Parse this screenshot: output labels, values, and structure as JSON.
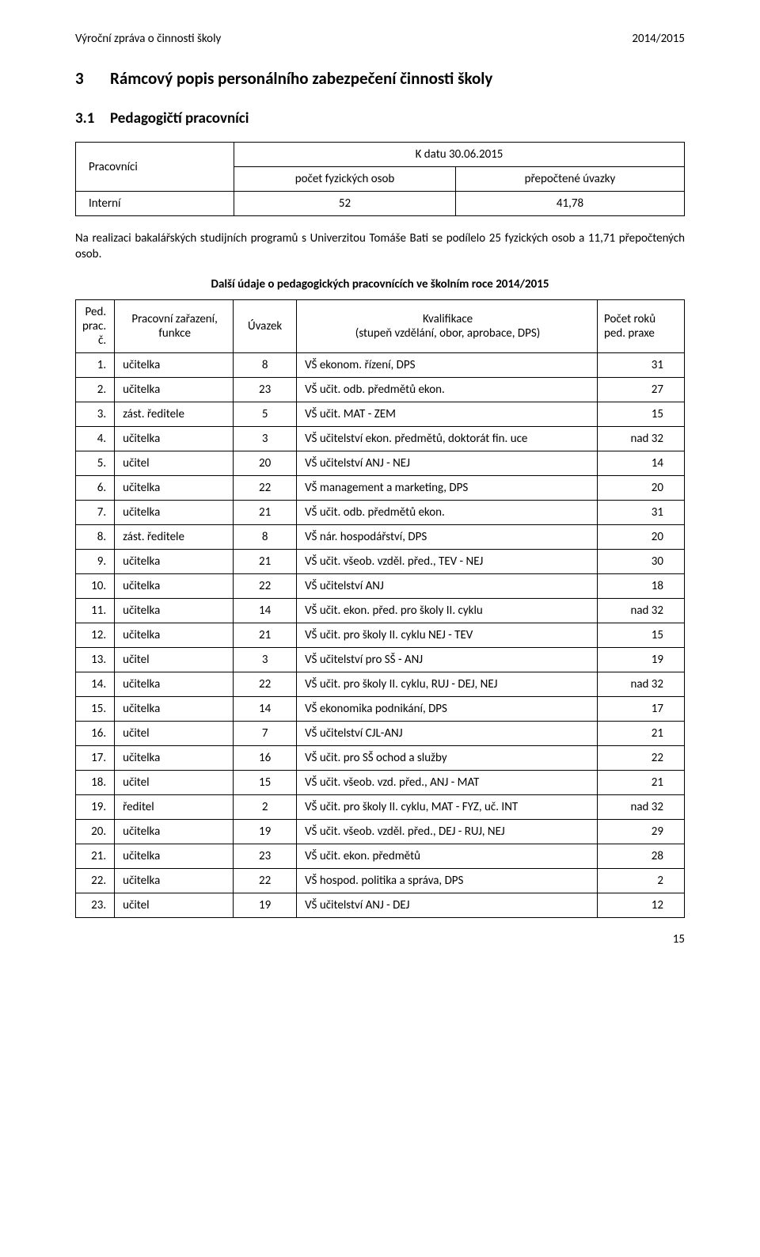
{
  "header": {
    "left": "Výroční zpráva o činnosti školy",
    "right": "2014/2015"
  },
  "h1": {
    "num": "3",
    "text": "Rámcový popis personálního zabezpečení činnosti školy"
  },
  "h2": {
    "num": "3.1",
    "text": "Pedagogičtí pracovníci"
  },
  "table1": {
    "r1c1": "Pracovníci",
    "r1c2": "K datu 30.06.2015",
    "r2c1": "počet fyzických osob",
    "r2c2": "přepočtené úvazky",
    "r3c1": "Interní",
    "r3c2": "52",
    "r3c3": "41,78"
  },
  "para": "Na realizaci bakalářských studijních programů s Univerzitou Tomáše Bati se podílelo 25 fyzických osob a 11,71 přepočtených osob.",
  "subhead": "Další údaje o pedagogických pracovnících ve školním roce 2014/2015",
  "table2": {
    "head": {
      "c1a": "Ped.",
      "c1b": "prac. č.",
      "c2a": "Pracovní zařazení,",
      "c2b": "funkce",
      "c3": "Úvazek",
      "c4a": "Kvalifikace",
      "c4b": "(stupeň vzdělání, obor, aprobace, DPS)",
      "c5a": "Počet roků",
      "c5b": "ped. praxe"
    },
    "rows": [
      {
        "n": "1.",
        "func": "učitelka",
        "uv": "8",
        "kval": "VŠ ekonom. řízení, DPS",
        "roky": "31"
      },
      {
        "n": "2.",
        "func": "učitelka",
        "uv": "23",
        "kval": "VŠ učit. odb. předmětů ekon.",
        "roky": "27"
      },
      {
        "n": "3.",
        "func": "zást. ředitele",
        "uv": "5",
        "kval": "VŠ učit. MAT - ZEM",
        "roky": "15"
      },
      {
        "n": "4.",
        "func": "učitelka",
        "uv": "3",
        "kval": "VŠ učitelství ekon. předmětů, doktorát fin. uce",
        "roky": "nad 32"
      },
      {
        "n": "5.",
        "func": "učitel",
        "uv": "20",
        "kval": "VŠ učitelství ANJ - NEJ",
        "roky": "14"
      },
      {
        "n": "6.",
        "func": "učitelka",
        "uv": "22",
        "kval": "VŠ management a marketing, DPS",
        "roky": "20"
      },
      {
        "n": "7.",
        "func": "učitelka",
        "uv": "21",
        "kval": "VŠ učit. odb. předmětů ekon.",
        "roky": "31"
      },
      {
        "n": "8.",
        "func": "zást. ředitele",
        "uv": "8",
        "kval": "VŠ nár. hospodářství, DPS",
        "roky": "20"
      },
      {
        "n": "9.",
        "func": "učitelka",
        "uv": "21",
        "kval": "VŠ učit. všeob. vzděl. před., TEV - NEJ",
        "roky": "30"
      },
      {
        "n": "10.",
        "func": "učitelka",
        "uv": "22",
        "kval": "VŠ učitelství ANJ",
        "roky": "18"
      },
      {
        "n": "11.",
        "func": "učitelka",
        "uv": "14",
        "kval": "VŠ učit. ekon. před. pro školy II. cyklu",
        "roky": "nad 32"
      },
      {
        "n": "12.",
        "func": "učitelka",
        "uv": "21",
        "kval": "VŠ učit. pro školy II. cyklu NEJ - TEV",
        "roky": "15"
      },
      {
        "n": "13.",
        "func": "učitel",
        "uv": "3",
        "kval": "VŠ učitelství pro SŠ - ANJ",
        "roky": "19"
      },
      {
        "n": "14.",
        "func": "učitelka",
        "uv": "22",
        "kval": "VŠ učit. pro školy II. cyklu, RUJ - DEJ, NEJ",
        "roky": "nad 32"
      },
      {
        "n": "15.",
        "func": "učitelka",
        "uv": "14",
        "kval": "VŠ ekonomika podnikání, DPS",
        "roky": "17"
      },
      {
        "n": "16.",
        "func": "učitel",
        "uv": "7",
        "kval": "VŠ učitelství CJL-ANJ",
        "roky": "21"
      },
      {
        "n": "17.",
        "func": "učitelka",
        "uv": "16",
        "kval": "VŠ učit. pro SŠ ochod a služby",
        "roky": "22"
      },
      {
        "n": "18.",
        "func": "učitel",
        "uv": "15",
        "kval": "VŠ učit. všeob. vzd. před., ANJ - MAT",
        "roky": "21"
      },
      {
        "n": "19.",
        "func": "ředitel",
        "uv": "2",
        "kval": "VŠ učit. pro školy II. cyklu, MAT - FYZ, uč. INT",
        "roky": "nad 32"
      },
      {
        "n": "20.",
        "func": "učitelka",
        "uv": "19",
        "kval": "VŠ učit. všeob. vzděl. před., DEJ - RUJ, NEJ",
        "roky": "29"
      },
      {
        "n": "21.",
        "func": "učitelka",
        "uv": "23",
        "kval": "VŠ učit. ekon. předmětů",
        "roky": "28"
      },
      {
        "n": "22.",
        "func": "učitelka",
        "uv": "22",
        "kval": "VŠ hospod. politika a správa, DPS",
        "roky": "2"
      },
      {
        "n": "23.",
        "func": "učitel",
        "uv": "19",
        "kval": "VŠ učitelství ANJ - DEJ",
        "roky": "12"
      }
    ]
  },
  "pagenum": "15"
}
